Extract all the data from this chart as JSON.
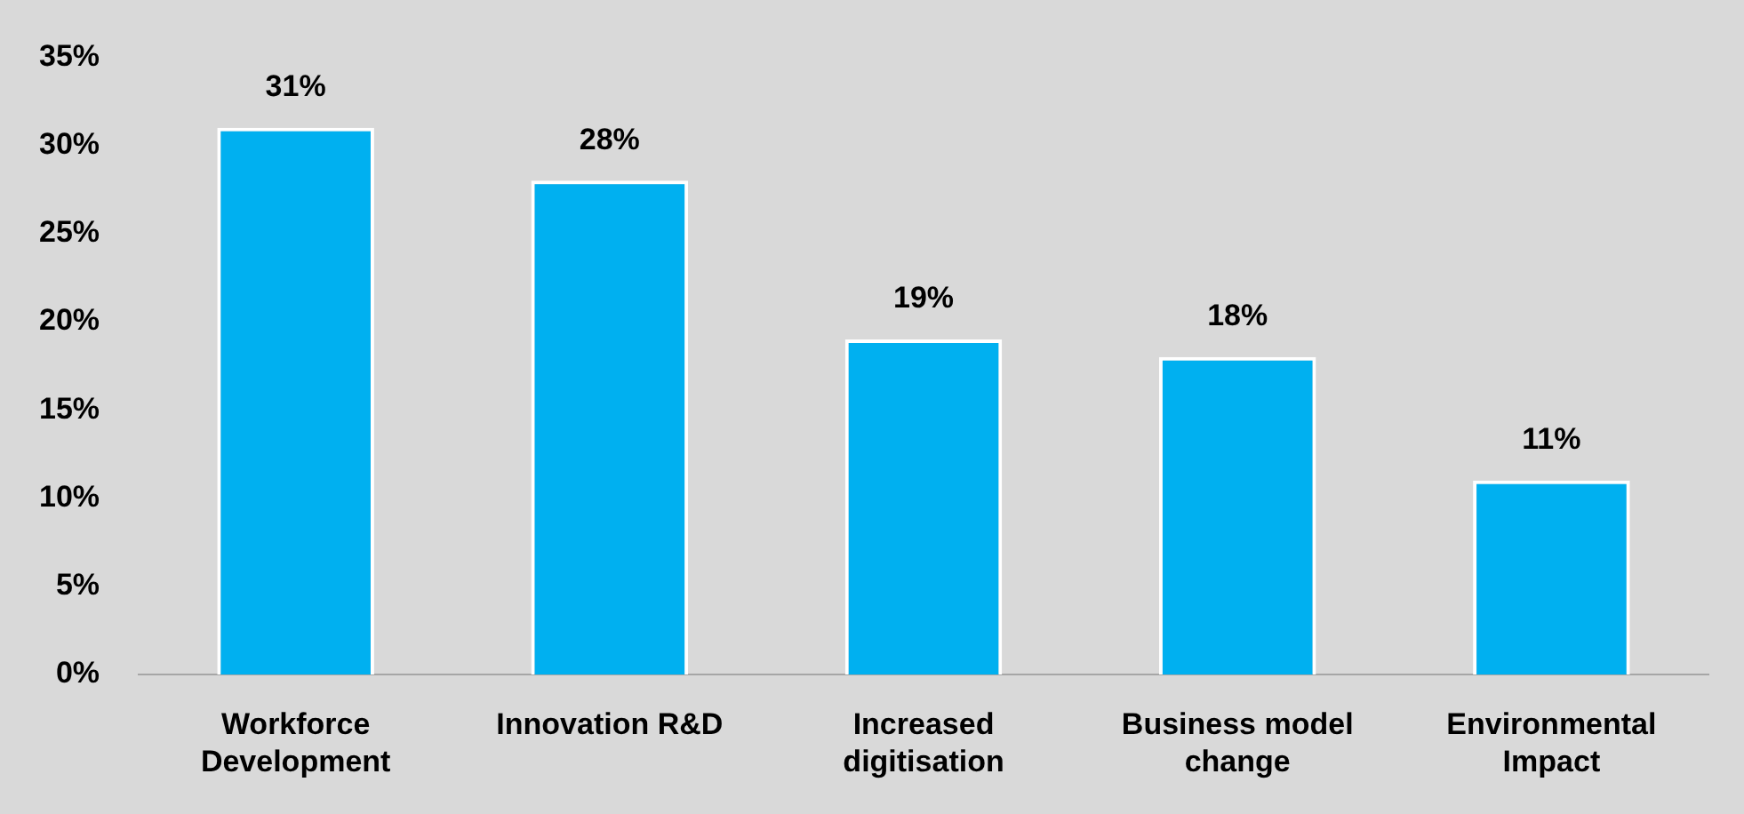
{
  "chart_data": {
    "type": "bar",
    "categories": [
      "Workforce Development",
      "Innovation R&D",
      "Increased digitisation",
      "Business model change",
      "Environmental Impact"
    ],
    "values": [
      31,
      28,
      19,
      18,
      11
    ],
    "color": "#00b0f0",
    "value_labels": [
      "31%",
      "28%",
      "19%",
      "18%",
      "11%"
    ],
    "ylim": [
      0,
      35
    ],
    "yticks": [
      {
        "value": 0,
        "label": "0%"
      },
      {
        "value": 5,
        "label": "5%"
      },
      {
        "value": 10,
        "label": "10%"
      },
      {
        "value": 15,
        "label": "15%"
      },
      {
        "value": 20,
        "label": "20%"
      },
      {
        "value": 25,
        "label": "25%"
      },
      {
        "value": 30,
        "label": "30%"
      },
      {
        "value": 35,
        "label": "35%"
      }
    ],
    "grid": false,
    "legend": false
  }
}
